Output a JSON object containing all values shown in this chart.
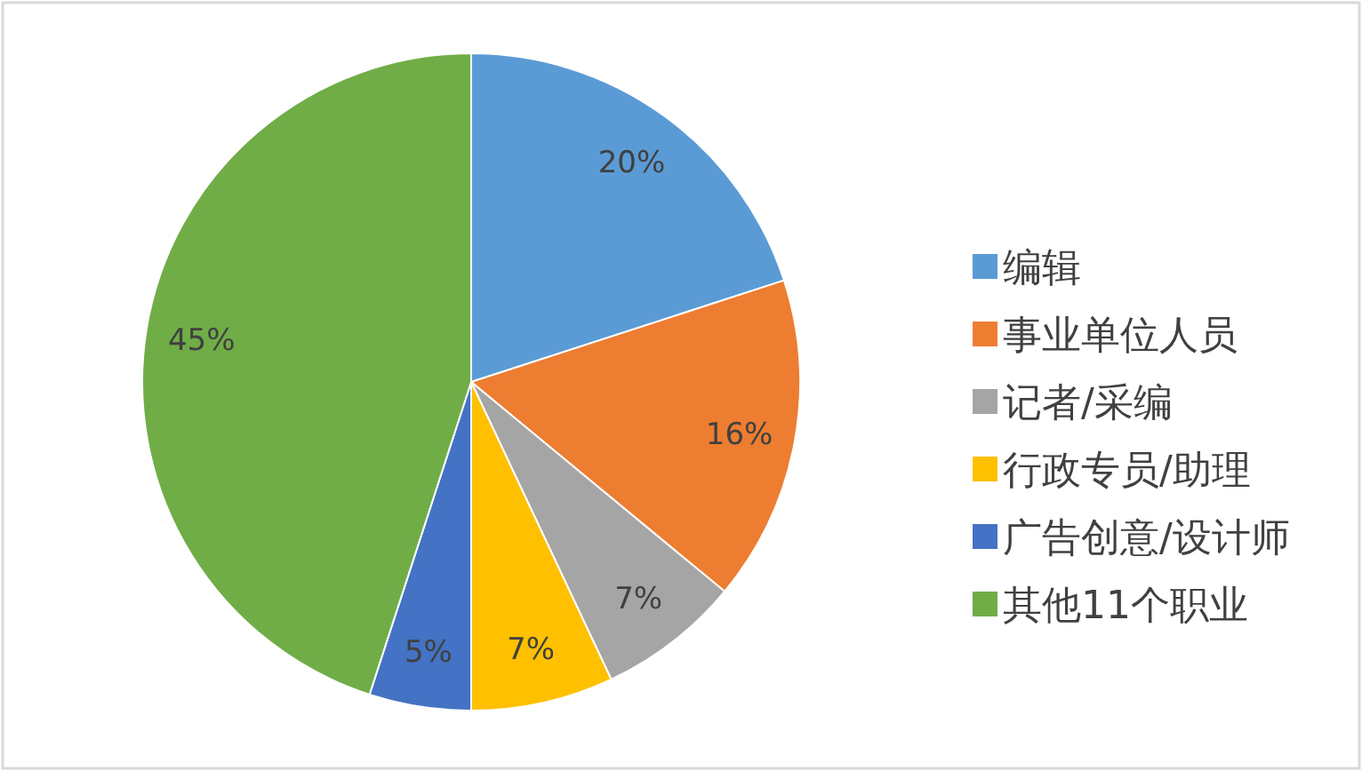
{
  "chart_data": {
    "type": "pie",
    "categories": [
      "编辑",
      "事业单位人员",
      "记者/采编",
      "行政专员/助理",
      "广告创意/设计师",
      "其他11个职业"
    ],
    "values": [
      20,
      16,
      7,
      7,
      5,
      45
    ],
    "colors": [
      "#5b9bd5",
      "#ed7d31",
      "#a5a5a5",
      "#ffc000",
      "#4472c4",
      "#70ad47"
    ],
    "value_labels": [
      "20%",
      "16%",
      "7%",
      "7%",
      "5%",
      "45%"
    ],
    "legend": "right"
  }
}
